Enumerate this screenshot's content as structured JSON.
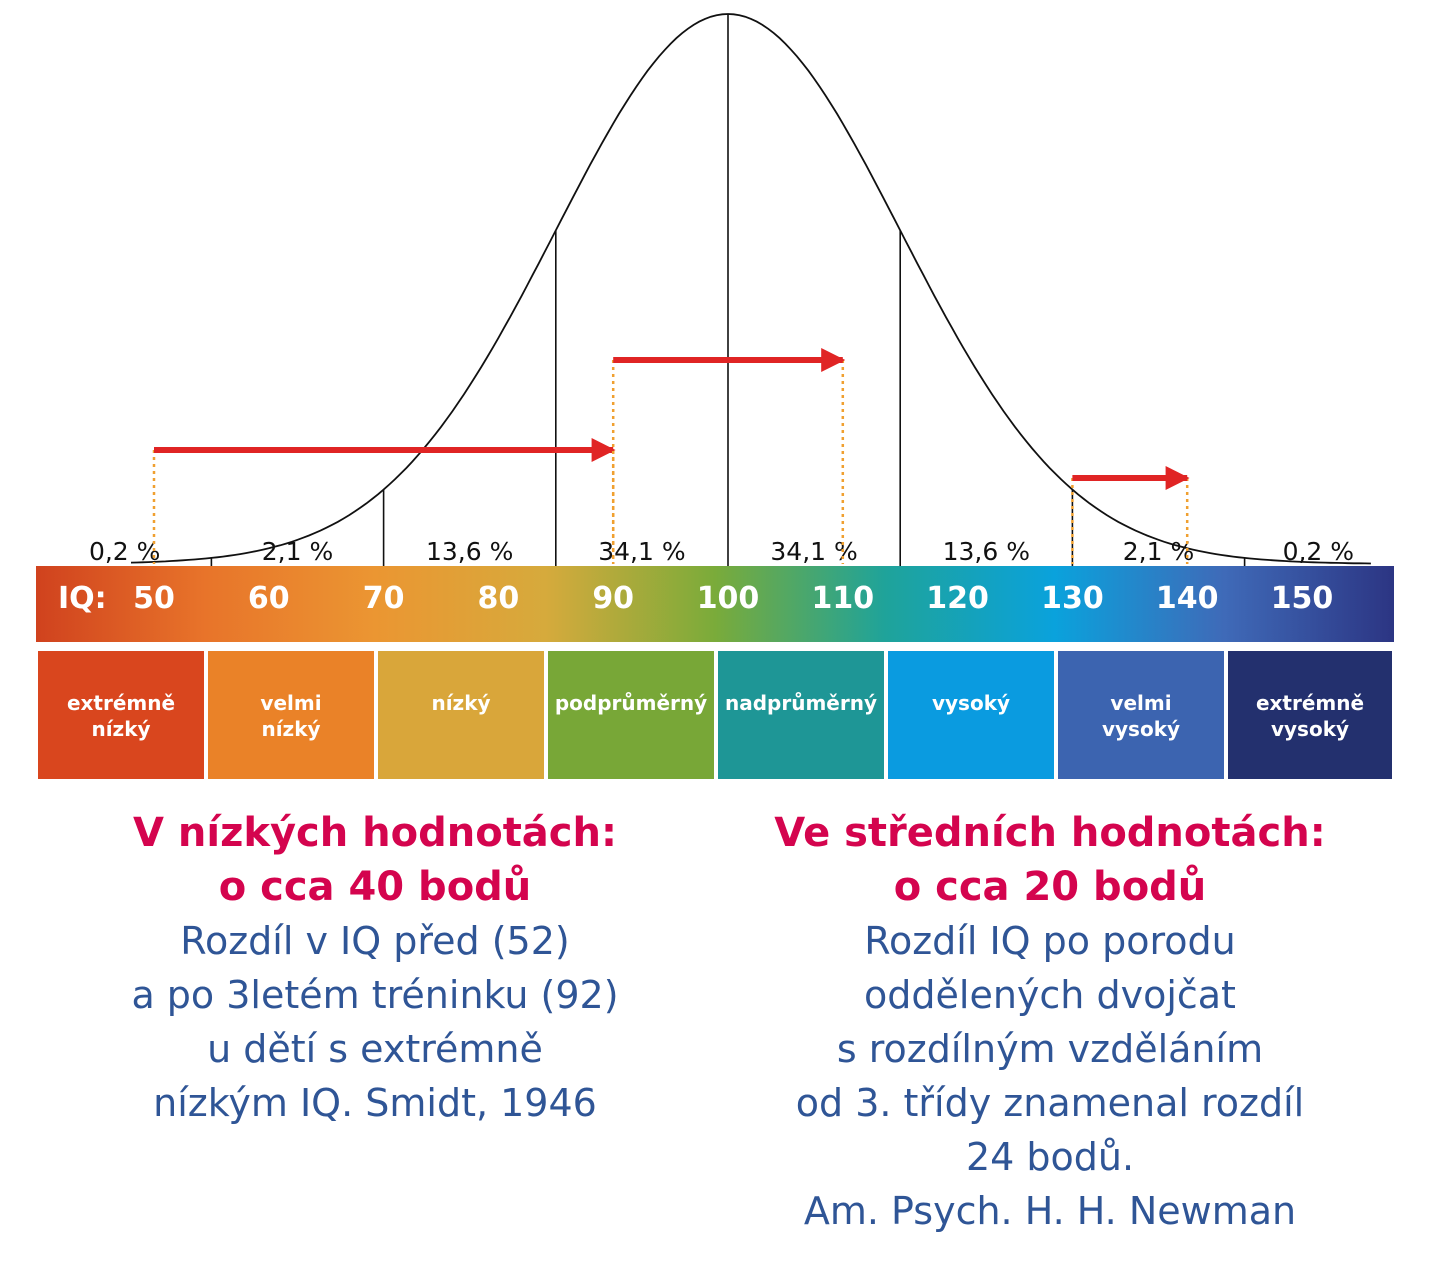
{
  "chart_data": {
    "type": "area",
    "title": "",
    "x_ticks": [
      50,
      60,
      70,
      80,
      90,
      100,
      110,
      120,
      130,
      140,
      150
    ],
    "axis_label": "IQ:",
    "xlim": [
      40,
      160
    ],
    "distribution": {
      "kind": "normal",
      "mean": 100,
      "sd": 15
    },
    "segment_boundaries": [
      55,
      70,
      85,
      100,
      115,
      130,
      145
    ],
    "segment_percentages": [
      "0,2 %",
      "2,1 %",
      "13,6 %",
      "34,1 %",
      "34,1 %",
      "13,6 %",
      "2,1 %",
      "0,2 %"
    ],
    "categories": [
      {
        "lines": [
          "extrémně",
          "nízký"
        ],
        "color": "#d9461e"
      },
      {
        "lines": [
          "velmi",
          "nízký"
        ],
        "color": "#ea8228"
      },
      {
        "lines": [
          "nízký"
        ],
        "color": "#d9a63a"
      },
      {
        "lines": [
          "podprůměrný"
        ],
        "color": "#78a737"
      },
      {
        "lines": [
          "nadprůměrný"
        ],
        "color": "#1e9696"
      },
      {
        "lines": [
          "vysoký"
        ],
        "color": "#0a9be0"
      },
      {
        "lines": [
          "velmi",
          "vysoký"
        ],
        "color": "#3c64b0"
      },
      {
        "lines": [
          "extrémně",
          "vysoký"
        ],
        "color": "#23306e"
      }
    ],
    "arrows": [
      {
        "from": 50,
        "to": 90
      },
      {
        "from": 90,
        "to": 110
      },
      {
        "from": 130,
        "to": 140
      }
    ],
    "bar_gradient": [
      "#d0421e",
      "#e8742a",
      "#eb9632",
      "#d6aa3c",
      "#7aab3a",
      "#1fa39a",
      "#0aa2dc",
      "#3f6ab8",
      "#2c3583"
    ],
    "arrow_color": "#e02424",
    "dotted_color": "#f0a030"
  },
  "left": {
    "heading": [
      "V nízkých hodnotách:",
      "o cca 40 bodů"
    ],
    "body": [
      "Rozdíl v IQ před (52)",
      "a po 3letém tréninku (92)",
      "u dětí s extrémně",
      "nízkým IQ. Smidt, 1946"
    ]
  },
  "right": {
    "heading": [
      "Ve středních hodnotách:",
      "o cca 20 bodů"
    ],
    "body": [
      "Rozdíl IQ po porodu",
      "oddělených dvojčat",
      "s rozdílným vzděláním",
      "od 3. třídy znamenal rozdíl",
      "24 bodů.",
      "Am. Psych. H. H. Newman"
    ]
  }
}
